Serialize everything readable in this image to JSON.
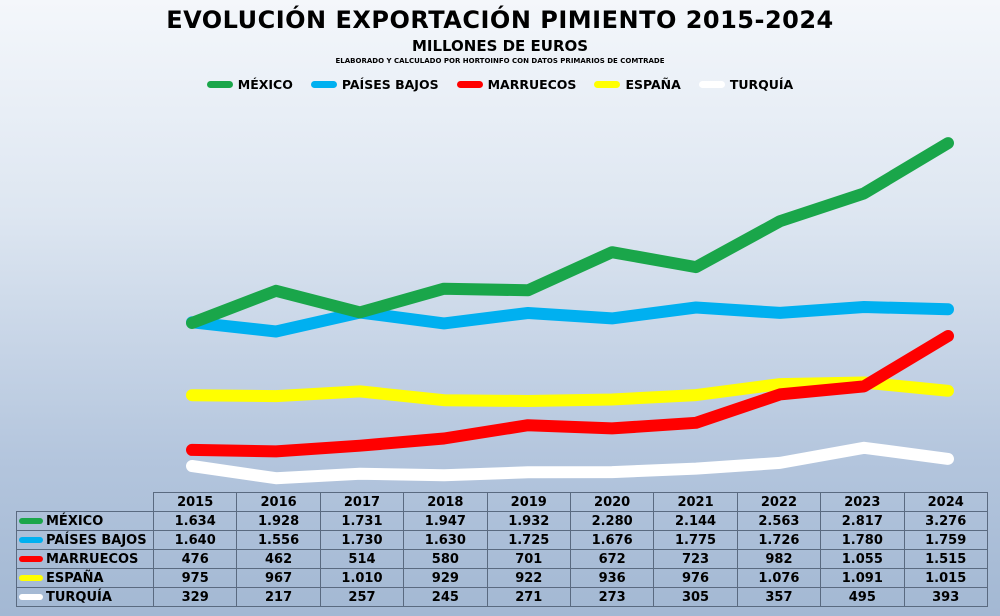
{
  "chart_data": {
    "type": "line",
    "title": "EVOLUCIÓN EXPORTACIÓN PIMIENTO 2015-2024",
    "subtitle": "MILLONES DE EUROS",
    "note": "ELABORADO Y CALCULADO POR HORTOINFO CON DATOS PRIMARIOS DE COMTRADE",
    "categories": [
      "2015",
      "2016",
      "2017",
      "2018",
      "2019",
      "2020",
      "2021",
      "2022",
      "2023",
      "2024"
    ],
    "series": [
      {
        "name": "MÉXICO",
        "color": "#1aa64a",
        "values": [
          1634,
          1928,
          1731,
          1947,
          1932,
          2280,
          2144,
          2563,
          2817,
          3276
        ],
        "labels": [
          "1.634",
          "1.928",
          "1.731",
          "1.947",
          "1.932",
          "2.280",
          "2.144",
          "2.563",
          "2.817",
          "3.276"
        ]
      },
      {
        "name": "PAÍSES BAJOS",
        "color": "#00b0f0",
        "values": [
          1640,
          1556,
          1730,
          1630,
          1725,
          1676,
          1775,
          1726,
          1780,
          1759
        ],
        "labels": [
          "1.640",
          "1.556",
          "1.730",
          "1.630",
          "1.725",
          "1.676",
          "1.775",
          "1.726",
          "1.780",
          "1.759"
        ]
      },
      {
        "name": "MARRUECOS",
        "color": "#ff0000",
        "values": [
          476,
          462,
          514,
          580,
          701,
          672,
          723,
          982,
          1055,
          1515
        ],
        "labels": [
          "476",
          "462",
          "514",
          "580",
          "701",
          "672",
          "723",
          "982",
          "1.055",
          "1.515"
        ]
      },
      {
        "name": "ESPAÑA",
        "color": "#ffff00",
        "values": [
          975,
          967,
          1010,
          929,
          922,
          936,
          976,
          1076,
          1091,
          1015
        ],
        "labels": [
          "975",
          "967",
          "1.010",
          "929",
          "922",
          "936",
          "976",
          "1.076",
          "1.091",
          "1.015"
        ]
      },
      {
        "name": "TURQUÍA",
        "color": "#ffffff",
        "values": [
          329,
          217,
          257,
          245,
          271,
          273,
          305,
          357,
          495,
          393
        ],
        "labels": [
          "329",
          "217",
          "257",
          "245",
          "271",
          "273",
          "305",
          "357",
          "495",
          "393"
        ]
      }
    ],
    "ylim": [
      0,
      3700
    ],
    "legend_position": "top-center",
    "grid": false,
    "data_table": true
  }
}
